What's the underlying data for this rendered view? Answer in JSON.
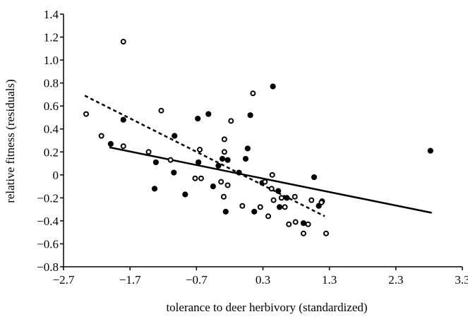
{
  "chart_data": {
    "type": "scatter",
    "xlabel": "tolerance to deer herbivory (standardized)",
    "ylabel": "relative fitness (residuals)",
    "xlim": [
      -2.7,
      3.3
    ],
    "xticks": [
      {
        "value": -2.7,
        "label": "−2.7"
      },
      {
        "value": -1.7,
        "label": "−1.7"
      },
      {
        "value": -0.7,
        "label": "−0.7"
      },
      0.3,
      1.3,
      2.3,
      3.3
    ],
    "ylim": [
      -0.8,
      1.4
    ],
    "yticks": [
      {
        "value": -0.8,
        "label": "−0.8"
      },
      {
        "value": -0.6,
        "label": "−0.6"
      },
      {
        "value": -0.4,
        "label": "−0.4"
      },
      {
        "value": -0.2,
        "label": "−0.2"
      },
      0,
      0.2,
      0.4,
      0.6,
      0.8,
      {
        "value": 1.0,
        "label": "1.0"
      },
      1.2,
      1.4
    ],
    "series": [
      {
        "marker": "filled",
        "color": "#000000",
        "x": [
          -1.99,
          -1.8,
          -1.31,
          -1.33,
          -1.03,
          -1.04,
          -0.87,
          -0.68,
          -0.67,
          -0.52,
          -0.45,
          -0.37,
          -0.31,
          -0.26,
          -0.23,
          -0.06,
          0.04,
          0.07,
          0.11,
          0.17,
          0.29,
          0.45,
          0.53,
          0.55,
          0.66,
          0.91,
          1.07,
          1.14,
          1.19,
          2.82
        ],
        "values": [
          0.27,
          0.48,
          0.11,
          -0.12,
          0.34,
          0.02,
          -0.17,
          0.49,
          0.11,
          0.53,
          -0.1,
          0.08,
          0.14,
          -0.32,
          0.13,
          0.02,
          0.14,
          0.23,
          0.52,
          -0.32,
          -0.07,
          0.77,
          -0.14,
          -0.28,
          -0.2,
          -0.42,
          -0.02,
          -0.27,
          -0.23,
          0.21
        ]
      },
      {
        "marker": "open",
        "color": "#000000",
        "x": [
          -2.36,
          -2.13,
          -1.8,
          -1.8,
          -1.42,
          -1.23,
          -1.09,
          -0.72,
          -0.65,
          -0.63,
          -0.33,
          -0.28,
          -0.28,
          -0.23,
          -0.18,
          -0.29,
          -0.01,
          0.15,
          0.33,
          0.26,
          0.38,
          0.44,
          0.43,
          0.46,
          0.58,
          0.63,
          0.69,
          0.78,
          0.79,
          0.91,
          0.98,
          1.03,
          1.18,
          1.25
        ],
        "values": [
          0.53,
          0.34,
          1.16,
          0.25,
          0.2,
          0.56,
          0.13,
          -0.03,
          0.22,
          -0.03,
          -0.06,
          0.31,
          0.2,
          -0.09,
          0.47,
          -0.19,
          -0.27,
          0.71,
          -0.06,
          -0.28,
          -0.36,
          0.0,
          -0.12,
          -0.22,
          -0.2,
          -0.28,
          -0.43,
          -0.19,
          -0.41,
          -0.51,
          -0.43,
          -0.22,
          -0.24,
          -0.51
        ]
      }
    ],
    "lines": [
      {
        "style": "solid",
        "color": "#000000",
        "x": [
          -2.01,
          2.84
        ],
        "values": [
          0.24,
          -0.33
        ]
      },
      {
        "style": "dashed",
        "color": "#000000",
        "x": [
          -2.38,
          1.23
        ],
        "values": [
          0.69,
          -0.36
        ]
      }
    ]
  }
}
